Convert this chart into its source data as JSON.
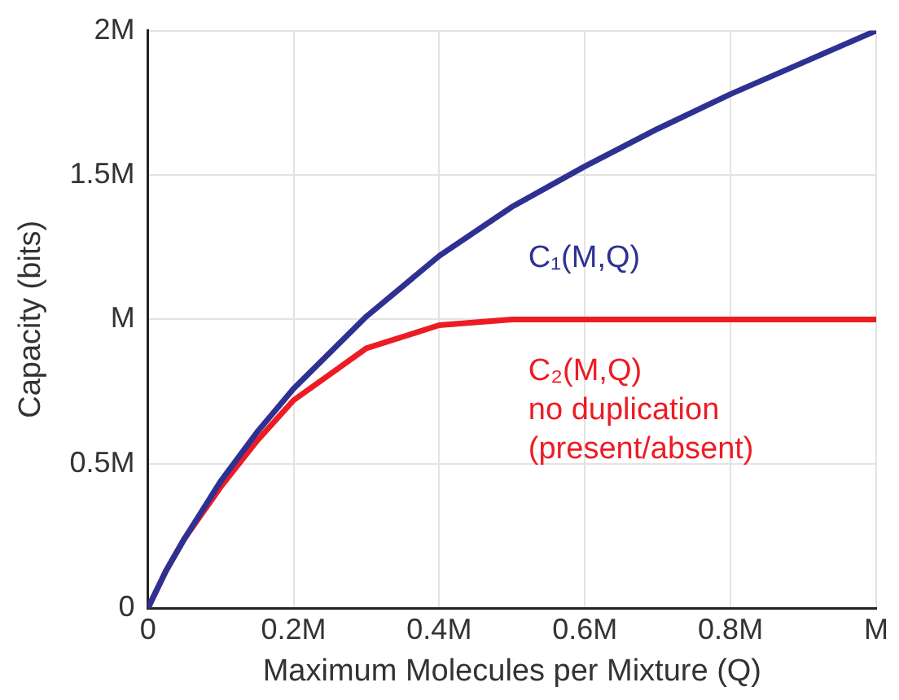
{
  "chart_data": {
    "type": "line",
    "xlabel": "Maximum Molecules per Mixture (Q)",
    "ylabel": "Capacity (bits)",
    "x": [
      0,
      0.025,
      0.05,
      0.1,
      0.15,
      0.2,
      0.3,
      0.4,
      0.5,
      0.6,
      0.7,
      0.8,
      0.9,
      1.0
    ],
    "series": [
      {
        "name": "C₁(M,Q)",
        "color": "#2e3192",
        "values": [
          0,
          0.13,
          0.24,
          0.44,
          0.61,
          0.76,
          1.01,
          1.22,
          1.39,
          1.53,
          1.66,
          1.78,
          1.89,
          2.0
        ]
      },
      {
        "name": "C₂(M,Q) no duplication (present/absent)",
        "color": "#ed1c24",
        "values": [
          0,
          0.13,
          0.24,
          0.42,
          0.58,
          0.72,
          0.9,
          0.98,
          1.0,
          1.0,
          1.0,
          1.0,
          1.0,
          1.0
        ]
      }
    ],
    "xlim": [
      0,
      1
    ],
    "xticks": [
      0,
      {
        "value": 0.2,
        "label": "0.2M"
      },
      {
        "value": 0.4,
        "label": "0.4M"
      },
      {
        "value": 0.6,
        "label": "0.6M"
      },
      {
        "value": 0.8,
        "label": "0.8M"
      },
      {
        "value": 1,
        "label": "M"
      }
    ],
    "ylim": [
      0,
      2
    ],
    "yticks": [
      0,
      {
        "value": 0.5,
        "label": "0.5M"
      },
      {
        "value": 1,
        "label": "M"
      },
      {
        "value": 1.5,
        "label": "1.5M"
      },
      {
        "value": 2,
        "label": "2M"
      }
    ],
    "grid": true,
    "legend": false,
    "marker": "none",
    "line_style": "solid"
  }
}
